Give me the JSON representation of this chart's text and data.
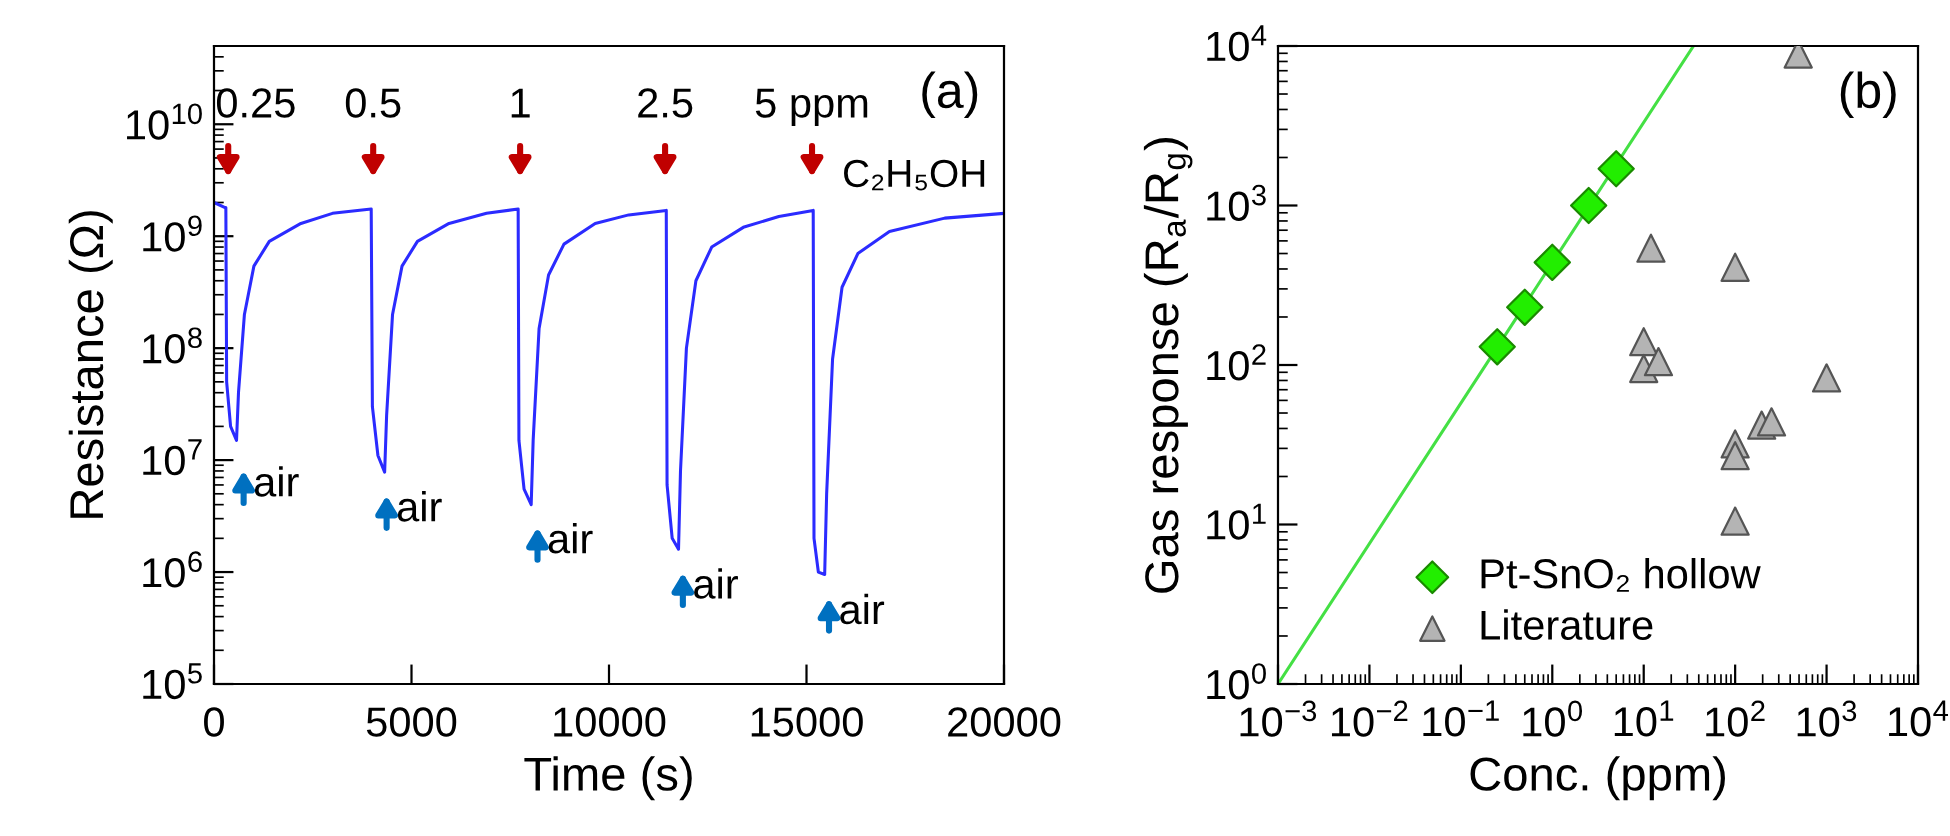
{
  "chart_data": [
    {
      "type": "line",
      "xlabel": "Time (s)",
      "ylabel": "Resistance (Ω)",
      "log": "y",
      "grid": false,
      "legend": false,
      "marker": "none",
      "line_style": "solid",
      "x": [
        0,
        280,
        300,
        320,
        420,
        570,
        620,
        770,
        1010,
        1400,
        2200,
        3000,
        3980,
        4010,
        4150,
        4320,
        4370,
        4520,
        4760,
        5150,
        5950,
        6900,
        7700,
        7720,
        7850,
        8030,
        8080,
        8230,
        8470,
        8860,
        9650,
        10500,
        11450,
        11470,
        11600,
        11760,
        11810,
        11960,
        12200,
        12600,
        13400,
        14300,
        15170,
        15190,
        15300,
        15460,
        15510,
        15660,
        15900,
        16300,
        17100,
        18500,
        20000
      ],
      "series": [
        {
          "color": "#2b2bff",
          "values": [
            2000000000.0,
            1800000000.0,
            1800000000.0,
            50000000.0,
            20000000.0,
            15000000.0,
            40000000.0,
            200000000.0,
            540000000.0,
            900000000.0,
            1300000000.0,
            1600000000.0,
            1750000000.0,
            30000000.0,
            11000000.0,
            7800000.0,
            25000000.0,
            200000000.0,
            540000000.0,
            900000000.0,
            1300000000.0,
            1600000000.0,
            1750000000.0,
            15000000.0,
            5500000.0,
            4000000.0,
            15000000.0,
            150000000.0,
            450000000.0,
            850000000.0,
            1300000000.0,
            1550000000.0,
            1700000000.0,
            6000000.0,
            2000000.0,
            1600000.0,
            8000000.0,
            100000000.0,
            400000000.0,
            800000000.0,
            1200000000.0,
            1500000000.0,
            1700000000.0,
            2000000.0,
            1000000.0,
            950000.0,
            5000000.0,
            80000000.0,
            350000000.0,
            700000000.0,
            1100000000.0,
            1450000000.0,
            1600000000.0
          ]
        }
      ],
      "xlim": [
        0,
        20000
      ],
      "ylim": [
        100000.0,
        50000000000.0
      ],
      "xticks": [
        0,
        5000,
        10000,
        15000,
        20000
      ],
      "yticks": [
        {
          "value": 100000.0,
          "label": "10$^{5}$"
        },
        {
          "value": 1000000.0,
          "label": "10$^{6}$"
        },
        {
          "value": 10000000.0,
          "label": "10$^{7}$"
        },
        {
          "value": 100000000.0,
          "label": "10$^{8}$"
        },
        {
          "value": 1000000000.0,
          "label": "10$^{9}$"
        },
        {
          "value": 10000000000.0,
          "label": "10$^{10}$"
        }
      ],
      "annotations": [
        "(a)",
        "C₂H₅OH",
        "0.25",
        "0.5",
        "1",
        "2.5",
        "5 ppm",
        "air",
        "air",
        "air",
        "air",
        "air"
      ]
    },
    {
      "type": "scatter",
      "xlabel": "Conc. (ppm)",
      "ylabel": "Gas response (R$_{a}$/R$_{g}$)",
      "log": "xy",
      "grid": false,
      "legend": "bottom left",
      "xlim": [
        0.001,
        10000
      ],
      "ylim": [
        1,
        10000
      ],
      "xticks": [
        {
          "value": 0.001,
          "label": "10$^{−3}$"
        },
        {
          "value": 0.01,
          "label": "10$^{−2}$"
        },
        {
          "value": 0.1,
          "label": "10$^{−1}$"
        },
        {
          "value": 1,
          "label": "10$^{0}$"
        },
        {
          "value": 10,
          "label": "10$^{1}$"
        },
        {
          "value": 100,
          "label": "10$^{2}$"
        },
        {
          "value": 1000,
          "label": "10$^{3}$"
        },
        {
          "value": 10000,
          "label": "10$^{4}$"
        }
      ],
      "yticks": [
        {
          "value": 1,
          "label": "10$^{0}$"
        },
        {
          "value": 10,
          "label": "10$^{1}$"
        },
        {
          "value": 100,
          "label": "10$^{2}$"
        },
        {
          "value": 1000,
          "label": "10$^{3}$"
        },
        {
          "value": 10000,
          "label": "10$^{4}$"
        }
      ],
      "series": [
        {
          "type": "line",
          "color": "#44e044",
          "marker": "none",
          "line_style": "solid",
          "x": [
            0.001,
            35
          ],
          "values": [
            1,
            10000
          ]
        },
        {
          "type": "scatter",
          "name": "Pt-SnO₂ hollow",
          "color": "#22ee00",
          "marker": "diamond",
          "x": [
            0.25,
            0.5,
            1,
            2.5,
            5
          ],
          "values": [
            130,
            230,
            440,
            1000,
            1700
          ]
        },
        {
          "type": "scatter",
          "name": "Literature",
          "color": "#b4b4b4",
          "marker": "triangle",
          "x": [
            490,
            12,
            100,
            10,
            10,
            14.5,
            1000,
            100,
            100,
            100,
            195,
            250
          ],
          "values": [
            8900,
            540,
            410,
            140,
            95,
            105,
            83,
            32,
            27,
            10.5,
            42,
            44
          ]
        }
      ],
      "annotations": [
        "(b)"
      ]
    }
  ]
}
